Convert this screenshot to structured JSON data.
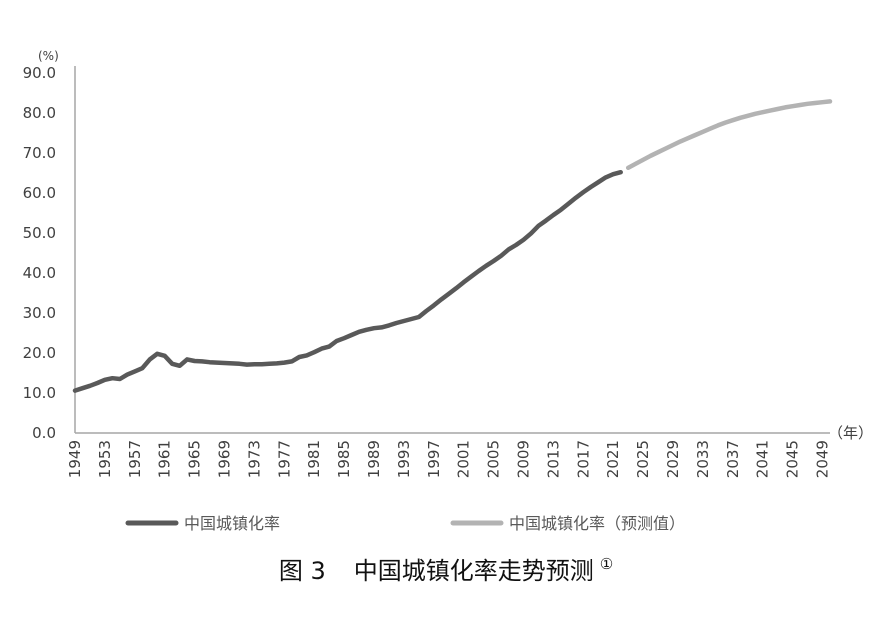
{
  "chart_data": {
    "type": "line",
    "y_unit": "(%)",
    "x_unit": "（年）",
    "ylim": [
      0,
      90
    ],
    "y_ticks": [
      "0.0",
      "10.0",
      "20.0",
      "30.0",
      "40.0",
      "50.0",
      "60.0",
      "70.0",
      "80.0",
      "90.0"
    ],
    "xlim": [
      1949,
      2050
    ],
    "x_ticks": [
      "1949",
      "1953",
      "1957",
      "1961",
      "1965",
      "1969",
      "1973",
      "1977",
      "1981",
      "1985",
      "1989",
      "1993",
      "1997",
      "2001",
      "2005",
      "2009",
      "2013",
      "2017",
      "2021",
      "2025",
      "2029",
      "2033",
      "2037",
      "2041",
      "2045",
      "2049"
    ],
    "grid": false,
    "legend_position": "bottom",
    "series": [
      {
        "name": "中国城镇化率",
        "color": "#595959",
        "x": [
          1949,
          1950,
          1951,
          1952,
          1953,
          1954,
          1955,
          1956,
          1957,
          1958,
          1959,
          1960,
          1961,
          1962,
          1963,
          1964,
          1965,
          1966,
          1967,
          1968,
          1969,
          1970,
          1971,
          1972,
          1973,
          1974,
          1975,
          1976,
          1977,
          1978,
          1979,
          1980,
          1981,
          1982,
          1983,
          1984,
          1985,
          1986,
          1987,
          1988,
          1989,
          1990,
          1991,
          1992,
          1993,
          1994,
          1995,
          1996,
          1997,
          1998,
          1999,
          2000,
          2001,
          2002,
          2003,
          2004,
          2005,
          2006,
          2007,
          2008,
          2009,
          2010,
          2011,
          2012,
          2013,
          2014,
          2015,
          2016,
          2017,
          2018,
          2019,
          2020,
          2021,
          2022
        ],
        "y": [
          10.6,
          11.2,
          11.8,
          12.5,
          13.3,
          13.7,
          13.5,
          14.6,
          15.4,
          16.2,
          18.4,
          19.8,
          19.3,
          17.3,
          16.8,
          18.4,
          18.0,
          17.9,
          17.7,
          17.6,
          17.5,
          17.4,
          17.3,
          17.1,
          17.2,
          17.2,
          17.3,
          17.4,
          17.6,
          17.9,
          19.0,
          19.4,
          20.2,
          21.1,
          21.6,
          23.0,
          23.7,
          24.5,
          25.3,
          25.8,
          26.2,
          26.4,
          26.9,
          27.5,
          28.0,
          28.5,
          29.0,
          30.5,
          31.9,
          33.4,
          34.8,
          36.2,
          37.7,
          39.1,
          40.5,
          41.8,
          43.0,
          44.3,
          45.9,
          47.0,
          48.3,
          49.9,
          51.8,
          53.1,
          54.5,
          55.8,
          57.3,
          58.8,
          60.2,
          61.5,
          62.7,
          63.9,
          64.7,
          65.2
        ]
      },
      {
        "name": "中国城镇化率（预测值）",
        "color": "#b3b3b3",
        "x": [
          2023,
          2024,
          2025,
          2026,
          2027,
          2028,
          2029,
          2030,
          2031,
          2032,
          2033,
          2034,
          2035,
          2036,
          2037,
          2038,
          2039,
          2040,
          2041,
          2042,
          2043,
          2044,
          2045,
          2046,
          2047,
          2048,
          2049,
          2050
        ],
        "y": [
          66.3,
          67.3,
          68.3,
          69.3,
          70.2,
          71.1,
          72.0,
          72.9,
          73.7,
          74.5,
          75.3,
          76.1,
          76.9,
          77.6,
          78.2,
          78.8,
          79.3,
          79.8,
          80.2,
          80.6,
          81.0,
          81.4,
          81.7,
          82.0,
          82.3,
          82.5,
          82.7,
          82.9
        ]
      }
    ]
  },
  "legend": [
    {
      "label": "中国城镇化率",
      "color": "#595959"
    },
    {
      "label": "中国城镇化率（预测值）",
      "color": "#b3b3b3"
    }
  ],
  "caption": {
    "number": "图 3",
    "title": "中国城镇化率走势预测",
    "note": "①"
  }
}
